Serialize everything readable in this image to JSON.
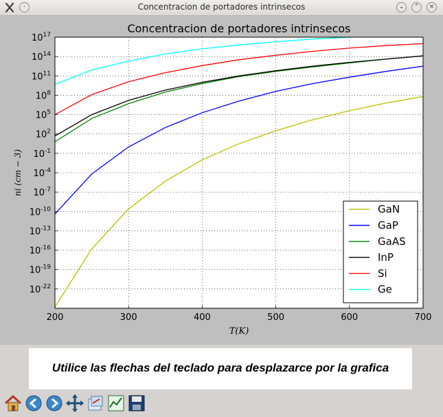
{
  "window": {
    "title": "Concentracion de portadores intrinsecos",
    "app_icon": "matplotlib-x-icon",
    "buttons": [
      "minimize-icon",
      "maximize-icon",
      "close-icon"
    ]
  },
  "message": "Utilice las flechas del teclado para desplazarce por la grafica",
  "toolbar": {
    "tools": [
      "home-icon",
      "back-arrow-icon",
      "forward-arrow-icon",
      "pan-icon",
      "configure-subplots-icon",
      "edit-curve-icon",
      "save-icon"
    ]
  },
  "colors": {
    "GaN": "#bfbf00",
    "GaP": "#0000ff",
    "GaAS": "#008000",
    "InP": "#000000",
    "Si": "#ff0000",
    "Ge": "#00ffff"
  },
  "chart_data": {
    "type": "line",
    "title": "Concentracion de portadores intrinsecos",
    "xlabel": "T(K)",
    "ylabel": "ni (cm − 3)",
    "xlim": [
      200,
      700
    ],
    "ylim_log10": [
      -25,
      17
    ],
    "y_scale": "log",
    "grid": true,
    "legend_position": "lower-right",
    "xticks": [
      "200",
      "300",
      "400",
      "500",
      "600",
      "700"
    ],
    "yticks": [
      {
        "base": "10",
        "exp": "17",
        "value": 17
      },
      {
        "base": "10",
        "exp": "14",
        "value": 14
      },
      {
        "base": "10",
        "exp": "11",
        "value": 11
      },
      {
        "base": "10",
        "exp": "8",
        "value": 8
      },
      {
        "base": "10",
        "exp": "5",
        "value": 5
      },
      {
        "base": "10",
        "exp": "2",
        "value": 2
      },
      {
        "base": "10",
        "exp": "-1",
        "value": -1
      },
      {
        "base": "10",
        "exp": "-4",
        "value": -4
      },
      {
        "base": "10",
        "exp": "-7",
        "value": -7
      },
      {
        "base": "10",
        "exp": "-10",
        "value": -10
      },
      {
        "base": "10",
        "exp": "-13",
        "value": -13
      },
      {
        "base": "10",
        "exp": "-16",
        "value": -16
      },
      {
        "base": "10",
        "exp": "-19",
        "value": -19
      },
      {
        "base": "10",
        "exp": "-22",
        "value": -22
      }
    ],
    "series": [
      {
        "name": "GaN",
        "x": [
          200,
          250,
          300,
          350,
          400,
          450,
          500,
          550,
          600,
          650,
          700
        ],
        "log10_ni": [
          -24.8,
          -15.8,
          -9.6,
          -5.3,
          -2.0,
          0.5,
          2.5,
          4.2,
          5.6,
          6.8,
          7.8
        ]
      },
      {
        "name": "GaP",
        "x": [
          200,
          250,
          300,
          350,
          400,
          450,
          500,
          550,
          600,
          650,
          700
        ],
        "log10_ni": [
          -10.4,
          -4.2,
          0.0,
          3.0,
          5.3,
          7.1,
          8.6,
          9.8,
          10.8,
          11.7,
          12.5
        ]
      },
      {
        "name": "GaAS",
        "x": [
          200,
          250,
          300,
          350,
          400,
          450,
          500,
          550,
          600,
          650,
          700
        ],
        "log10_ni": [
          0.8,
          4.4,
          6.7,
          8.5,
          9.8,
          10.9,
          11.7,
          12.4,
          13.0,
          13.6,
          14.1
        ]
      },
      {
        "name": "InP",
        "x": [
          200,
          250,
          300,
          350,
          400,
          450,
          500,
          550,
          600,
          650,
          700
        ],
        "log10_ni": [
          1.7,
          5.0,
          7.2,
          8.8,
          10.0,
          11.0,
          11.8,
          12.5,
          13.1,
          13.6,
          14.1
        ]
      },
      {
        "name": "Si",
        "x": [
          200,
          250,
          300,
          350,
          400,
          450,
          500,
          550,
          600,
          650,
          700
        ],
        "log10_ni": [
          5.0,
          8.1,
          10.1,
          11.5,
          12.6,
          13.5,
          14.2,
          14.8,
          15.3,
          15.7,
          16.0
        ]
      },
      {
        "name": "Ge",
        "x": [
          200,
          250,
          300,
          350,
          400,
          450,
          500,
          550,
          600,
          650
        ],
        "log10_ni": [
          9.7,
          11.9,
          13.3,
          14.4,
          15.2,
          15.8,
          16.3,
          16.7,
          17.0,
          17.2
        ]
      }
    ]
  }
}
